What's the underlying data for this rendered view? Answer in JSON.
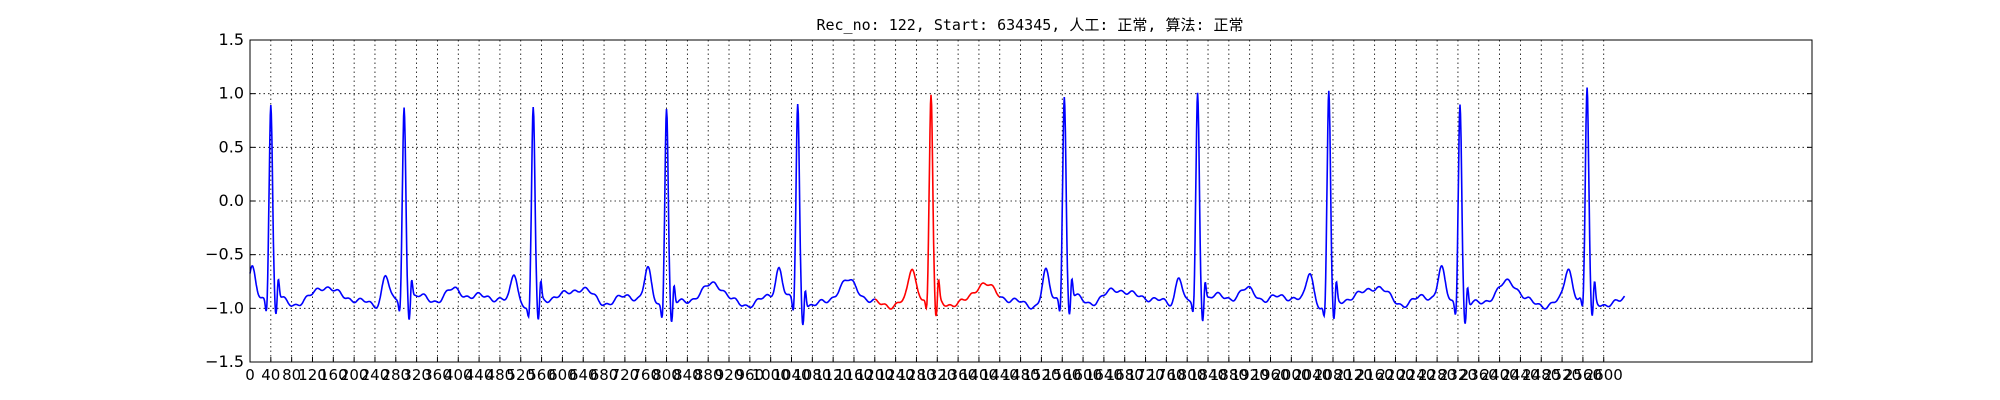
{
  "chart_data": {
    "type": "line",
    "title": "Rec_no: 122, Start: 634345, 人工: 正常, 算法: 正常",
    "xlabel": "",
    "ylabel": "",
    "xlim": [
      0,
      1500
    ],
    "ylim": [
      -1.5,
      1.5
    ],
    "grid": true,
    "yticks": [
      "1.5",
      "1.0",
      "0.5",
      "0.0",
      "−0.5",
      "−1.0",
      "−1.5"
    ],
    "yticks_values": [
      1.5,
      1.0,
      0.5,
      0.0,
      -0.5,
      -1.0,
      -1.5
    ],
    "xticks_values": [
      0,
      20,
      40,
      60,
      80,
      100,
      120,
      140,
      160,
      180,
      200,
      220,
      240,
      260,
      280,
      300,
      320,
      340,
      360,
      380,
      400,
      420,
      440,
      460,
      480,
      500,
      520,
      540,
      560,
      580,
      600,
      620,
      640,
      660,
      680,
      700,
      720,
      740,
      760,
      780,
      800,
      820,
      840,
      860,
      880,
      900,
      920,
      940,
      960,
      980,
      1000,
      1020,
      1040,
      1060,
      1080,
      1100,
      1120,
      1140,
      1160,
      1180,
      1200,
      1220,
      1240,
      1260,
      1280,
      1300
    ],
    "xticks": [
      "0",
      "40",
      "80",
      "120",
      "160",
      "200",
      "240",
      "280",
      "320",
      "360",
      "400",
      "440",
      "480",
      "520",
      "560",
      "600",
      "640",
      "680",
      "720",
      "760",
      "800",
      "840",
      "880",
      "920",
      "960",
      "1000",
      "1040",
      "1080",
      "1120",
      "1160",
      "1200",
      "1240",
      "1280",
      "1320",
      "1360",
      "1400",
      "1440",
      "1480",
      "1520",
      "1560",
      "1600",
      "1640",
      "1680",
      "1720",
      "1760",
      "1800",
      "1840",
      "1880",
      "1920",
      "1960",
      "2000",
      "2040",
      "2080",
      "2120",
      "2160",
      "2200",
      "2240",
      "2280",
      "2320",
      "2360",
      "2400",
      "2440",
      "2480",
      "2520",
      "2560",
      "2600"
    ],
    "series_colors": {
      "normal": "#0000ff",
      "highlight": "#ff0000"
    },
    "beat_peaks_x": [
      20,
      148,
      272,
      400,
      526,
      654,
      782,
      910,
      1036,
      1162,
      1284
    ],
    "beat_peaks_y": [
      0.87,
      0.85,
      0.87,
      0.93,
      0.9,
      0.94,
      0.96,
      0.99,
      1.05,
      0.97,
      1.02
    ],
    "highlight_range_x": [
      600,
      720
    ],
    "x_end": 1320
  }
}
